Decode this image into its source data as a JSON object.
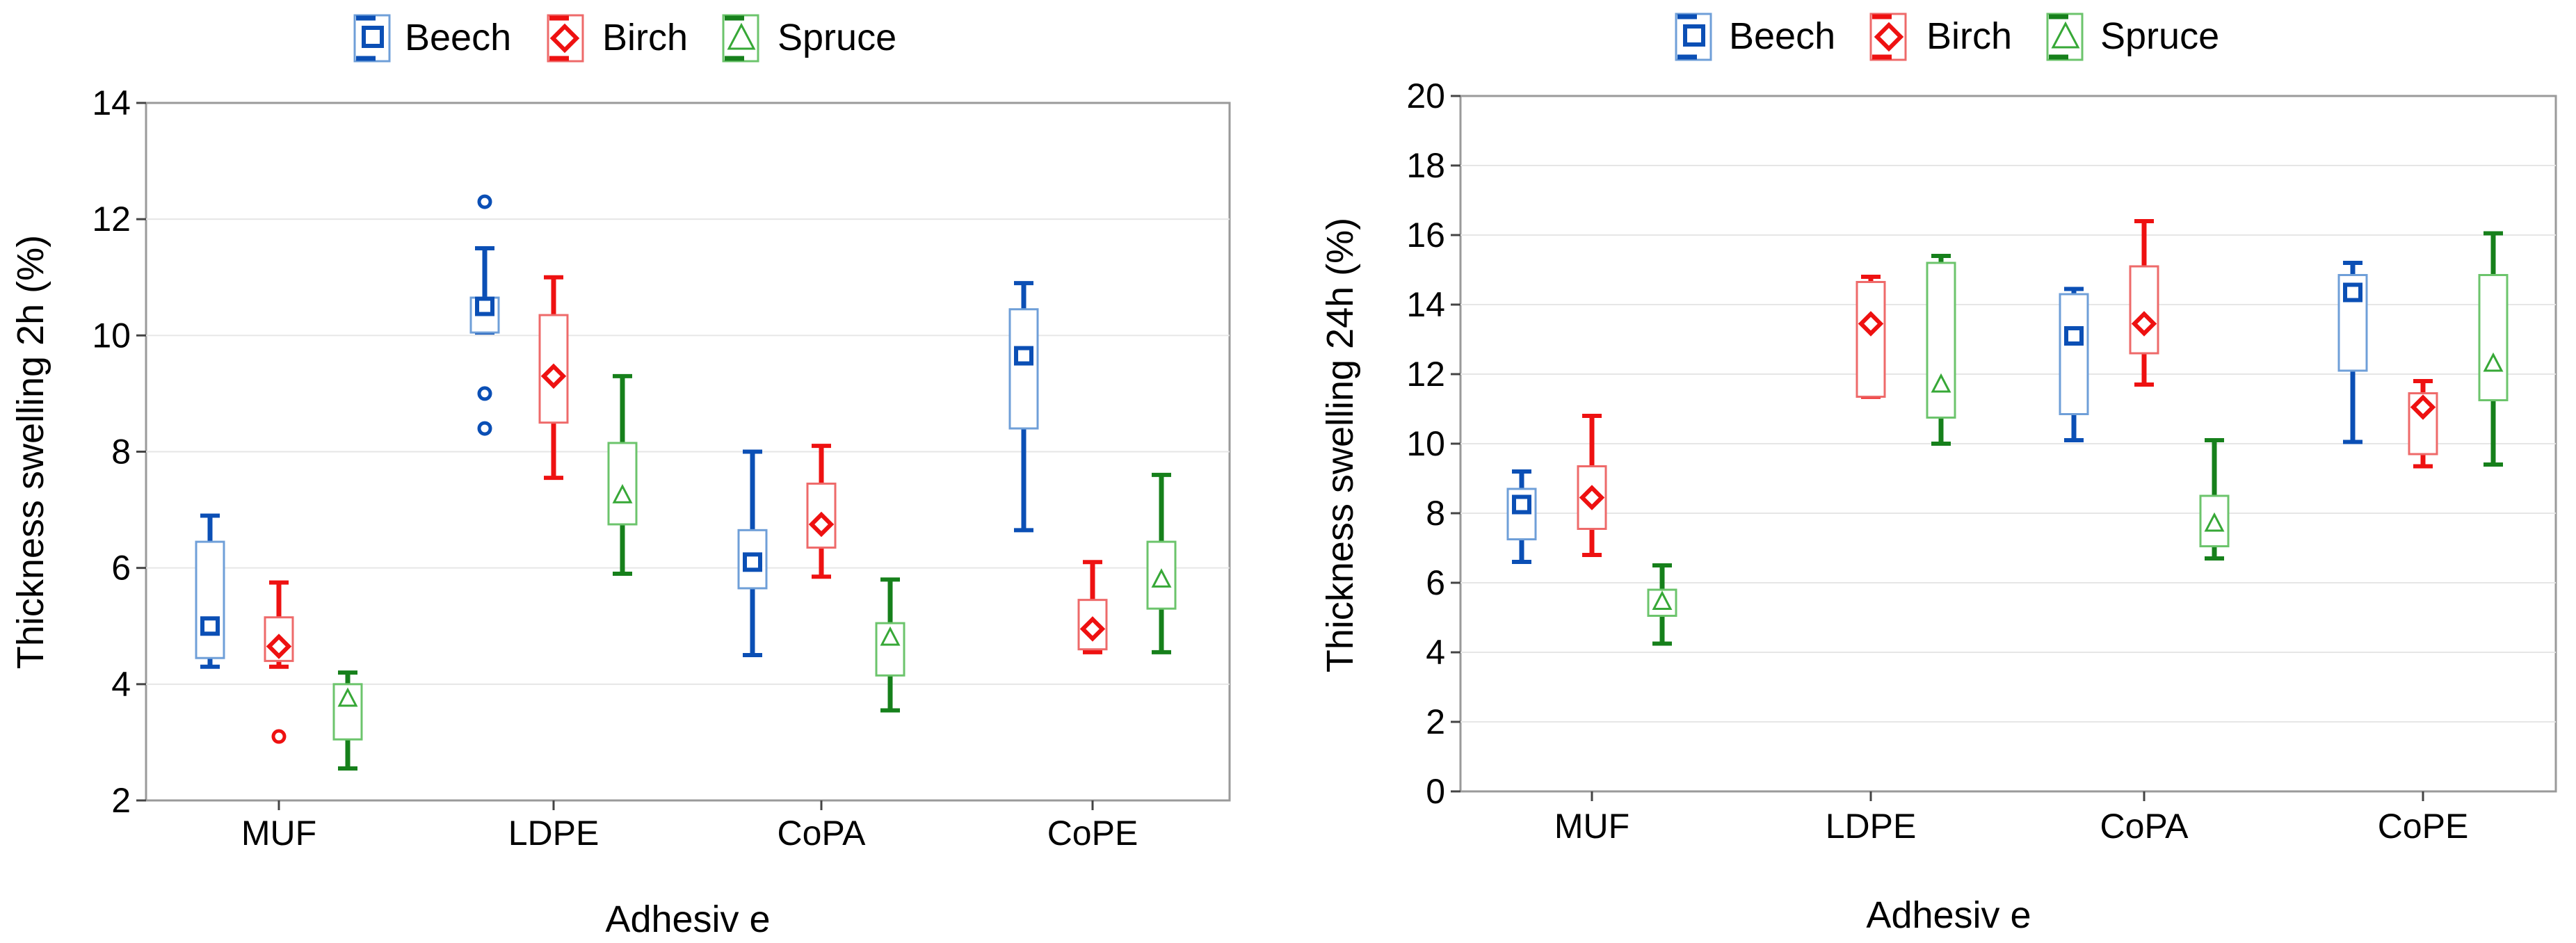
{
  "legend_labels": [
    "Beech",
    "Birch",
    "Spruce"
  ],
  "colors": {
    "Beech": {
      "box": "#6f9fd8",
      "whisker": "#0b4fb5",
      "marker": "#0b4fb5"
    },
    "Birch": {
      "box": "#ee6a6a",
      "whisker": "#ee1111",
      "marker": "#ee1111"
    },
    "Spruce": {
      "box": "#6cc46c",
      "whisker": "#16801b",
      "marker": "#37a837"
    }
  },
  "chart_data": [
    {
      "type": "boxplot",
      "xlabel": "Adhesiv e",
      "ylabel": "Thickness swelling 2h (%)",
      "ylim": [
        2,
        14
      ],
      "yticks": [
        "2",
        "4",
        "6",
        "8",
        "10",
        "12",
        "14"
      ],
      "categories": [
        "MUF",
        "LDPE",
        "CoPA",
        "CoPE"
      ],
      "series": [
        {
          "name": "Beech",
          "boxes": [
            {
              "median": 5.0,
              "q1": 4.45,
              "q3": 6.45,
              "min": 4.3,
              "max": 6.9,
              "outliers": []
            },
            {
              "median": 10.5,
              "q1": 10.05,
              "q3": 10.65,
              "min": 10.05,
              "max": 11.5,
              "outliers": [
                12.3,
                9.0,
                8.4
              ]
            },
            {
              "median": 6.1,
              "q1": 5.65,
              "q3": 6.65,
              "min": 4.5,
              "max": 8.0,
              "outliers": []
            },
            {
              "median": 9.65,
              "q1": 8.4,
              "q3": 10.45,
              "min": 6.65,
              "max": 10.9,
              "outliers": []
            }
          ]
        },
        {
          "name": "Birch",
          "boxes": [
            {
              "median": 4.65,
              "q1": 4.4,
              "q3": 5.15,
              "min": 4.3,
              "max": 5.75,
              "outliers": [
                3.1
              ]
            },
            {
              "median": 9.3,
              "q1": 8.5,
              "q3": 10.35,
              "min": 7.55,
              "max": 11.0,
              "outliers": []
            },
            {
              "median": 6.75,
              "q1": 6.35,
              "q3": 7.45,
              "min": 5.85,
              "max": 8.1,
              "outliers": []
            },
            {
              "median": 4.95,
              "q1": 4.6,
              "q3": 5.45,
              "min": 4.55,
              "max": 6.1,
              "outliers": []
            }
          ]
        },
        {
          "name": "Spruce",
          "boxes": [
            {
              "median": 3.75,
              "q1": 3.05,
              "q3": 4.0,
              "min": 2.55,
              "max": 4.2,
              "outliers": []
            },
            {
              "median": 7.25,
              "q1": 6.75,
              "q3": 8.15,
              "min": 5.9,
              "max": 9.3,
              "outliers": []
            },
            {
              "median": 4.8,
              "q1": 4.15,
              "q3": 5.05,
              "min": 3.55,
              "max": 5.8,
              "outliers": []
            },
            {
              "median": 5.8,
              "q1": 5.3,
              "q3": 6.45,
              "min": 4.55,
              "max": 7.6,
              "outliers": []
            }
          ]
        }
      ]
    },
    {
      "type": "boxplot",
      "xlabel": "Adhesiv e",
      "ylabel": "Thickness swelling 24h (%)",
      "ylim": [
        0,
        20
      ],
      "yticks": [
        "0",
        "2",
        "4",
        "6",
        "8",
        "10",
        "12",
        "14",
        "16",
        "18",
        "20"
      ],
      "categories": [
        "MUF",
        "LDPE",
        "CoPA",
        "CoPE"
      ],
      "series": [
        {
          "name": "Beech",
          "boxes": [
            {
              "median": 8.25,
              "q1": 7.25,
              "q3": 8.7,
              "min": 6.6,
              "max": 9.2,
              "outliers": []
            },
            null,
            {
              "median": 13.1,
              "q1": 10.85,
              "q3": 14.3,
              "min": 10.1,
              "max": 14.45,
              "outliers": []
            },
            {
              "median": 14.35,
              "q1": 12.1,
              "q3": 14.85,
              "min": 10.05,
              "max": 15.2,
              "outliers": []
            }
          ]
        },
        {
          "name": "Birch",
          "boxes": [
            {
              "median": 8.45,
              "q1": 7.55,
              "q3": 9.35,
              "min": 6.8,
              "max": 10.8,
              "outliers": []
            },
            {
              "median": 13.45,
              "q1": 11.35,
              "q3": 14.65,
              "min": 11.35,
              "max": 14.8,
              "outliers": []
            },
            {
              "median": 13.45,
              "q1": 12.6,
              "q3": 15.1,
              "min": 11.7,
              "max": 16.4,
              "outliers": []
            },
            {
              "median": 11.05,
              "q1": 9.7,
              "q3": 11.45,
              "min": 9.35,
              "max": 11.8,
              "outliers": []
            }
          ]
        },
        {
          "name": "Spruce",
          "boxes": [
            {
              "median": 5.45,
              "q1": 5.05,
              "q3": 5.8,
              "min": 4.25,
              "max": 6.5,
              "outliers": []
            },
            {
              "median": 11.7,
              "q1": 10.75,
              "q3": 15.2,
              "min": 10.0,
              "max": 15.4,
              "outliers": []
            },
            {
              "median": 7.7,
              "q1": 7.05,
              "q3": 8.5,
              "min": 6.7,
              "max": 10.1,
              "outliers": []
            },
            {
              "median": 12.3,
              "q1": 11.25,
              "q3": 14.85,
              "min": 9.4,
              "max": 16.05,
              "outliers": []
            }
          ]
        }
      ]
    }
  ]
}
